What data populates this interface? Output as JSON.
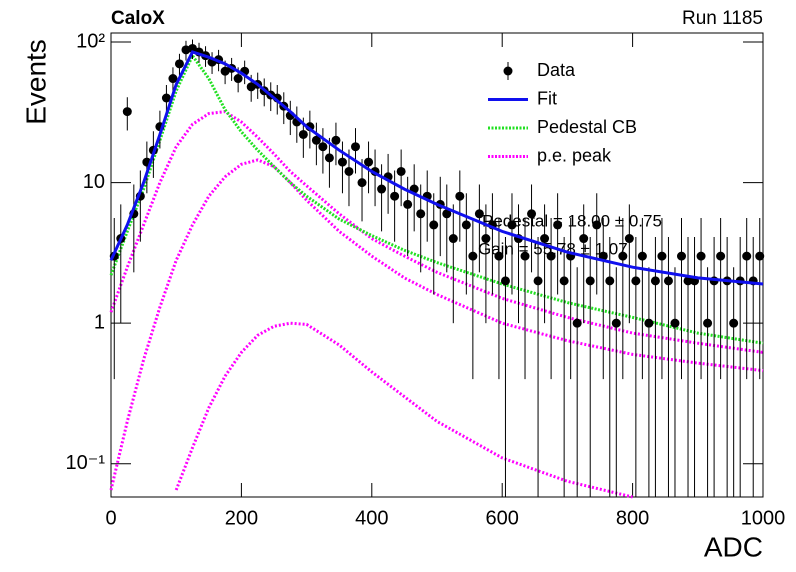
{
  "chart_data": {
    "type": "line",
    "title": "CaloX",
    "subtitle": "Run 1185",
    "x_label": "ADC",
    "y_label": "Events",
    "log_y": true,
    "legend": "upper right",
    "annotations": [
      "Pedestal = 18.00 ± 0.75",
      "Gain = 55.78 ± 1.07"
    ],
    "xlim": [
      0,
      1000
    ],
    "xticks": [
      0,
      200,
      400,
      600,
      800,
      1000
    ],
    "ylim": [
      0.058,
      116
    ],
    "yticks": [
      {
        "value": 0.1,
        "label": "10⁻¹"
      },
      1,
      10,
      {
        "value": 100,
        "label": "10²"
      }
    ],
    "curve_x": [
      0,
      25,
      50,
      75,
      100,
      125,
      150,
      175,
      200,
      225,
      250,
      275,
      300,
      350,
      400,
      450,
      500,
      600,
      700,
      800,
      900,
      1000
    ],
    "series": [
      {
        "name": "Data",
        "color": "#000000",
        "x": [
          5,
          15,
          25,
          35,
          45,
          55,
          65,
          75,
          85,
          95,
          105,
          115,
          125,
          135,
          145,
          155,
          165,
          175,
          185,
          195,
          205,
          215,
          225,
          235,
          245,
          255,
          265,
          275,
          285,
          295,
          305,
          315,
          325,
          335,
          345,
          355,
          365,
          375,
          385,
          395,
          405,
          415,
          425,
          435,
          445,
          455,
          465,
          475,
          485,
          495,
          505,
          515,
          525,
          535,
          545,
          555,
          565,
          575,
          585,
          595,
          605,
          615,
          625,
          635,
          645,
          655,
          665,
          675,
          685,
          695,
          705,
          715,
          725,
          735,
          745,
          755,
          765,
          775,
          785,
          795,
          805,
          815,
          825,
          835,
          845,
          855,
          865,
          875,
          885,
          895,
          905,
          915,
          925,
          935,
          945,
          955,
          965,
          975,
          985,
          995
        ],
        "values": [
          3,
          4,
          32,
          6,
          8,
          14,
          17,
          25,
          40,
          55,
          70,
          88,
          90,
          85,
          80,
          72,
          75,
          62,
          65,
          55,
          62,
          48,
          50,
          45,
          42,
          40,
          35,
          30,
          27,
          22,
          25,
          20,
          18,
          15,
          20,
          14,
          12,
          18,
          10,
          14,
          12,
          9,
          11,
          8,
          12,
          7,
          9,
          6,
          8,
          5,
          7,
          6,
          4,
          8,
          5,
          3,
          6,
          4,
          5,
          3,
          2,
          5,
          4,
          3,
          6,
          2,
          4,
          3,
          5,
          2,
          3,
          1,
          4,
          2,
          5,
          3,
          2,
          1,
          3,
          4,
          2,
          3,
          1,
          2,
          3,
          2,
          1,
          3,
          2,
          2,
          3,
          1,
          2,
          3,
          2,
          1,
          2,
          3,
          2,
          3
        ],
        "errors": [
          2.6,
          3,
          8.5,
          3.7,
          4.2,
          5.6,
          6.2,
          7.5,
          9.5,
          11.1,
          12.5,
          14.1,
          14.2,
          13.8,
          13.4,
          12.7,
          13,
          11.8,
          12.1,
          11.1,
          11.8,
          10.4,
          10.6,
          10.1,
          9.7,
          9.5,
          8.9,
          8.2,
          7.8,
          7,
          7.5,
          6.7,
          6.4,
          5.8,
          6.7,
          5.6,
          5.2,
          6.4,
          4.7,
          5.6,
          5.2,
          4.5,
          5,
          4.2,
          5.2,
          4,
          4.5,
          3.7,
          4.2,
          3.4,
          4,
          3.7,
          3,
          4.2,
          3.4,
          2.6,
          3.7,
          3,
          3.4,
          2.6,
          2.1,
          3.4,
          3,
          2.6,
          3.7,
          2.1,
          3,
          2.6,
          3.4,
          2.1,
          2.6,
          1.5,
          3,
          2.1,
          3.4,
          2.6,
          2.1,
          1.5,
          2.6,
          3,
          2.1,
          2.6,
          1.5,
          2.1,
          2.6,
          2.1,
          1.5,
          2.6,
          2.1,
          2.1,
          2.6,
          1.5,
          2.1,
          2.6,
          2.1,
          1.5,
          2.1,
          2.6,
          2.1,
          2.6
        ]
      },
      {
        "name": "Fit",
        "color": "#1010ee",
        "values": [
          2.8,
          5,
          10,
          22,
          50,
          85,
          78,
          70,
          60,
          50,
          40,
          32,
          25,
          17,
          12,
          9,
          7,
          4.5,
          3.2,
          2.5,
          2.1,
          1.9
        ]
      },
      {
        "name": "Pedestal CB",
        "color": "#22e022",
        "values": [
          2.2,
          4.5,
          9,
          20,
          45,
          80,
          55,
          33,
          23,
          17,
          13,
          10,
          8,
          5.5,
          4.2,
          3.3,
          2.7,
          1.9,
          1.4,
          1.1,
          0.85,
          0.72
        ]
      },
      {
        "name": "p.e. peak",
        "color": "#ff00ff",
        "curves": [
          [
            1.2,
            2.5,
            5,
            10,
            18,
            26,
            31,
            32,
            27,
            21,
            16,
            12,
            9.5,
            6,
            4,
            3,
            2.3,
            1.5,
            1.1,
            0.85,
            0.72,
            0.62
          ],
          [
            0.065,
            0.2,
            0.55,
            1.3,
            2.8,
            5,
            8,
            11,
            13.5,
            14.5,
            13,
            10,
            7.5,
            4.5,
            3,
            2.1,
            1.6,
            1,
            0.75,
            0.6,
            0.52,
            0.46
          ],
          [
            null,
            null,
            null,
            null,
            0.065,
            0.13,
            0.25,
            0.42,
            0.62,
            0.82,
            0.95,
            1,
            0.98,
            0.7,
            0.45,
            0.3,
            0.2,
            0.11,
            0.075,
            0.058,
            null,
            null
          ]
        ]
      }
    ]
  }
}
